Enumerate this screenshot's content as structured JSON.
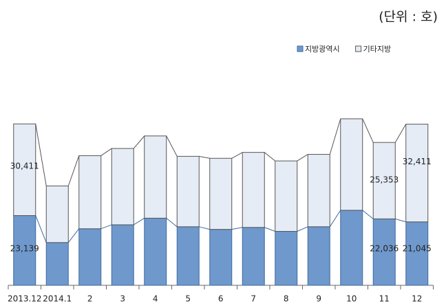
{
  "chart_data": {
    "type": "stacked_bar",
    "unit": "(단위 : 호)",
    "categories": [
      "2013.12",
      "2014.1",
      "2",
      "3",
      "4",
      "5",
      "6",
      "7",
      "8",
      "9",
      "10",
      "11",
      "12"
    ],
    "series": [
      {
        "name": "지방광역시",
        "color": "#6f98cc",
        "values": [
          23139,
          14190,
          18770,
          20080,
          22270,
          19430,
          18560,
          19210,
          17900,
          19430,
          24890,
          22036,
          21045
        ],
        "value_labels": [
          "23,139",
          null,
          null,
          null,
          null,
          null,
          null,
          null,
          null,
          null,
          null,
          "22,036",
          "21,045"
        ]
      },
      {
        "name": "기타지방",
        "color": "#e6ecf6",
        "values": [
          30411,
          18770,
          24230,
          25320,
          27280,
          23360,
          23570,
          24890,
          23360,
          24010,
          30340,
          25353,
          32411
        ],
        "value_labels": [
          "30,411",
          null,
          null,
          null,
          null,
          null,
          null,
          null,
          null,
          null,
          null,
          "25,353",
          "32,411"
        ]
      }
    ],
    "ylim": [
      0,
      65000
    ]
  }
}
